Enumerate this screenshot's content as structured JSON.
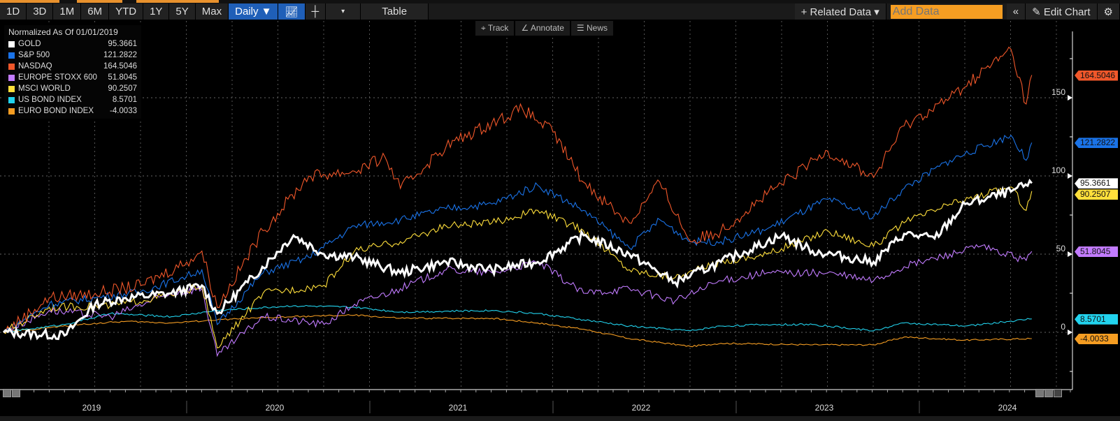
{
  "toolbar": {
    "ranges": [
      "1D",
      "3D",
      "1M",
      "6M",
      "YTD",
      "1Y",
      "5Y",
      "Max"
    ],
    "frequency": "Daily ▼",
    "table_label": "Table",
    "related_data": "+ Related Data ▾",
    "add_data_placeholder": "Add Data",
    "collapse": "«",
    "edit_chart": "✎ Edit Chart",
    "settings": "⚙"
  },
  "subtoolbar": {
    "track": "⌖ Track",
    "annotate": "∠ Annotate",
    "news": "☰ News"
  },
  "legend": {
    "title": "Normalized As Of 01/01/2019"
  },
  "chart_data": {
    "type": "line",
    "title": "Normalized As Of 01/01/2019",
    "x_ticks": [
      "2019",
      "2020",
      "2021",
      "2022",
      "2023",
      "2024"
    ],
    "y_ticks": [
      0,
      50,
      100,
      150
    ],
    "ylim": [
      -35,
      188
    ],
    "grid": true,
    "legend_placement": "top-left",
    "series": [
      {
        "name": "GOLD",
        "color": "#ffffff",
        "last": "95.3661",
        "points": [
          [
            "2019-01",
            0
          ],
          [
            "2019-05",
            -2
          ],
          [
            "2019-07",
            18
          ],
          [
            "2019-09",
            22
          ],
          [
            "2019-12",
            25
          ],
          [
            "2020-02",
            30
          ],
          [
            "2020-03",
            12
          ],
          [
            "2020-05",
            32
          ],
          [
            "2020-08",
            62
          ],
          [
            "2020-10",
            50
          ],
          [
            "2020-12",
            48
          ],
          [
            "2021-03",
            38
          ],
          [
            "2021-06",
            45
          ],
          [
            "2021-09",
            40
          ],
          [
            "2021-12",
            45
          ],
          [
            "2022-03",
            62
          ],
          [
            "2022-06",
            50
          ],
          [
            "2022-09",
            32
          ],
          [
            "2022-12",
            45
          ],
          [
            "2023-04",
            62
          ],
          [
            "2023-06",
            52
          ],
          [
            "2023-10",
            45
          ],
          [
            "2023-12",
            63
          ],
          [
            "2024-02",
            60
          ],
          [
            "2024-04",
            82
          ],
          [
            "2024-07",
            90
          ],
          [
            "2024-08",
            95.3661
          ]
        ]
      },
      {
        "name": "S&P 500",
        "color": "#1a73e8",
        "last": "121.2822",
        "points": [
          [
            "2019-01",
            0
          ],
          [
            "2019-04",
            18
          ],
          [
            "2019-07",
            22
          ],
          [
            "2019-10",
            26
          ],
          [
            "2020-01",
            36
          ],
          [
            "2020-02",
            40
          ],
          [
            "2020-03",
            5
          ],
          [
            "2020-06",
            38
          ],
          [
            "2020-09",
            48
          ],
          [
            "2020-12",
            68
          ],
          [
            "2021-03",
            72
          ],
          [
            "2021-06",
            79
          ],
          [
            "2021-09",
            82
          ],
          [
            "2021-12",
            94
          ],
          [
            "2022-03",
            78
          ],
          [
            "2022-06",
            54
          ],
          [
            "2022-08",
            72
          ],
          [
            "2022-10",
            58
          ],
          [
            "2022-12",
            58
          ],
          [
            "2023-03",
            66
          ],
          [
            "2023-07",
            85
          ],
          [
            "2023-10",
            74
          ],
          [
            "2023-12",
            92
          ],
          [
            "2024-03",
            110
          ],
          [
            "2024-07",
            126
          ],
          [
            "2024-08",
            110
          ],
          [
            "2024-08",
            121.2822
          ]
        ]
      },
      {
        "name": "NASDAQ",
        "color": "#f0572a",
        "last": "164.5046",
        "points": [
          [
            "2019-01",
            0
          ],
          [
            "2019-04",
            22
          ],
          [
            "2019-07",
            25
          ],
          [
            "2019-10",
            30
          ],
          [
            "2020-01",
            45
          ],
          [
            "2020-02",
            52
          ],
          [
            "2020-03",
            16
          ],
          [
            "2020-06",
            65
          ],
          [
            "2020-09",
            100
          ],
          [
            "2020-12",
            103
          ],
          [
            "2021-02",
            112
          ],
          [
            "2021-03",
            92
          ],
          [
            "2021-06",
            119
          ],
          [
            "2021-09",
            134
          ],
          [
            "2021-11",
            143
          ],
          [
            "2022-01",
            128
          ],
          [
            "2022-03",
            96
          ],
          [
            "2022-06",
            70
          ],
          [
            "2022-08",
            96
          ],
          [
            "2022-10",
            58
          ],
          [
            "2022-12",
            65
          ],
          [
            "2023-03",
            88
          ],
          [
            "2023-07",
            116
          ],
          [
            "2023-10",
            99
          ],
          [
            "2023-12",
            132
          ],
          [
            "2024-03",
            150
          ],
          [
            "2024-07",
            181
          ],
          [
            "2024-08",
            146
          ],
          [
            "2024-08",
            164.5046
          ]
        ]
      },
      {
        "name": "EUROPE STOXX 600",
        "color": "#c27bff",
        "last": "51.8045",
        "points": [
          [
            "2019-01",
            0
          ],
          [
            "2019-04",
            14
          ],
          [
            "2019-08",
            10
          ],
          [
            "2019-12",
            25
          ],
          [
            "2020-02",
            28
          ],
          [
            "2020-03",
            -15
          ],
          [
            "2020-06",
            10
          ],
          [
            "2020-10",
            5
          ],
          [
            "2020-12",
            18
          ],
          [
            "2021-03",
            28
          ],
          [
            "2021-06",
            40
          ],
          [
            "2021-09",
            38
          ],
          [
            "2021-12",
            45
          ],
          [
            "2022-03",
            25
          ],
          [
            "2022-06",
            28
          ],
          [
            "2022-09",
            20
          ],
          [
            "2022-12",
            33
          ],
          [
            "2023-03",
            38
          ],
          [
            "2023-07",
            38
          ],
          [
            "2023-10",
            33
          ],
          [
            "2023-12",
            42
          ],
          [
            "2024-03",
            50
          ],
          [
            "2024-05",
            55
          ],
          [
            "2024-08",
            46
          ],
          [
            "2024-08",
            51.8045
          ]
        ]
      },
      {
        "name": "MSCI WORLD",
        "color": "#ffdf3b",
        "last": "90.2507",
        "points": [
          [
            "2019-01",
            0
          ],
          [
            "2019-04",
            16
          ],
          [
            "2019-08",
            17
          ],
          [
            "2019-12",
            24
          ],
          [
            "2020-02",
            30
          ],
          [
            "2020-03",
            -10
          ],
          [
            "2020-06",
            25
          ],
          [
            "2020-10",
            30
          ],
          [
            "2020-12",
            52
          ],
          [
            "2021-03",
            58
          ],
          [
            "2021-06",
            68
          ],
          [
            "2021-09",
            70
          ],
          [
            "2021-12",
            78
          ],
          [
            "2022-03",
            65
          ],
          [
            "2022-06",
            40
          ],
          [
            "2022-09",
            35
          ],
          [
            "2022-12",
            45
          ],
          [
            "2023-03",
            50
          ],
          [
            "2023-07",
            65
          ],
          [
            "2023-10",
            55
          ],
          [
            "2023-12",
            70
          ],
          [
            "2024-03",
            82
          ],
          [
            "2024-07",
            93
          ],
          [
            "2024-08",
            78
          ],
          [
            "2024-08",
            90.2507
          ]
        ]
      },
      {
        "name": "US BOND INDEX",
        "color": "#22d3ee",
        "last": "8.5701",
        "points": [
          [
            "2019-01",
            0
          ],
          [
            "2019-05",
            5
          ],
          [
            "2019-08",
            12
          ],
          [
            "2019-12",
            10
          ],
          [
            "2020-03",
            14
          ],
          [
            "2020-08",
            17
          ],
          [
            "2020-12",
            16
          ],
          [
            "2021-03",
            13
          ],
          [
            "2021-09",
            14
          ],
          [
            "2021-12",
            12
          ],
          [
            "2022-03",
            8
          ],
          [
            "2022-06",
            4
          ],
          [
            "2022-10",
            1
          ],
          [
            "2022-12",
            4
          ],
          [
            "2023-03",
            5
          ],
          [
            "2023-06",
            5
          ],
          [
            "2023-10",
            1
          ],
          [
            "2023-12",
            6
          ],
          [
            "2024-04",
            4
          ],
          [
            "2024-08",
            8.5701
          ]
        ]
      },
      {
        "name": "EURO BOND INDEX",
        "color": "#f59d22",
        "last": "-4.0033",
        "points": [
          [
            "2019-01",
            0
          ],
          [
            "2019-06",
            5
          ],
          [
            "2019-09",
            7
          ],
          [
            "2019-12",
            6
          ],
          [
            "2020-03",
            8
          ],
          [
            "2020-08",
            10
          ],
          [
            "2020-12",
            11
          ],
          [
            "2021-03",
            9
          ],
          [
            "2021-09",
            9
          ],
          [
            "2021-12",
            6
          ],
          [
            "2022-03",
            2
          ],
          [
            "2022-06",
            -4
          ],
          [
            "2022-10",
            -9
          ],
          [
            "2022-12",
            -7
          ],
          [
            "2023-06",
            -8
          ],
          [
            "2023-10",
            -8
          ],
          [
            "2023-12",
            -3
          ],
          [
            "2024-04",
            -5
          ],
          [
            "2024-08",
            -4.0033
          ]
        ]
      }
    ]
  }
}
